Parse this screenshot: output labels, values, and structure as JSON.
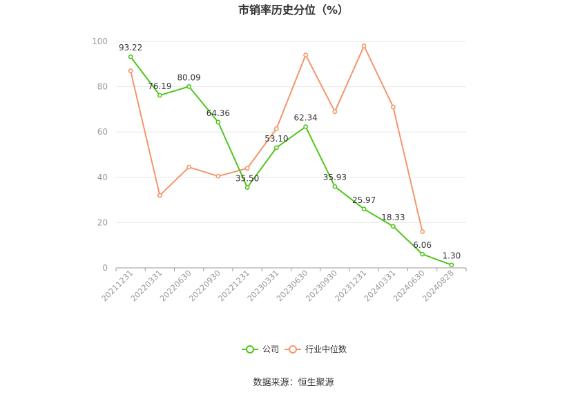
{
  "chart_data": {
    "type": "line",
    "title": "市销率历史分位（%）",
    "categories": [
      "20211231",
      "20220331",
      "20220630",
      "20220930",
      "20221231",
      "20230331",
      "20230630",
      "20230930",
      "20231231",
      "20240331",
      "20240630",
      "20240828"
    ],
    "ylim": [
      0,
      100
    ],
    "yticks": [
      "0",
      "20",
      "40",
      "60",
      "80",
      "100"
    ],
    "grid": true,
    "legend_position": "bottom",
    "series": [
      {
        "name": "公司",
        "color": "#52c41a",
        "values": [
          93.22,
          76.19,
          80.09,
          64.36,
          35.5,
          53.1,
          62.34,
          35.93,
          25.97,
          18.33,
          6.06,
          1.3
        ],
        "labels": [
          "93.22",
          "76.19",
          "80.09",
          "64.36",
          "35.50",
          "53.10",
          "62.34",
          "35.93",
          "25.97",
          "18.33",
          "6.06",
          "1.30"
        ]
      },
      {
        "name": "行业中位数",
        "color": "#f4956a",
        "values": [
          87,
          32,
          44.5,
          40.5,
          44,
          61.5,
          94,
          69,
          98,
          71,
          16,
          null
        ]
      }
    ]
  },
  "source_text": "数据来源：恒生聚源"
}
